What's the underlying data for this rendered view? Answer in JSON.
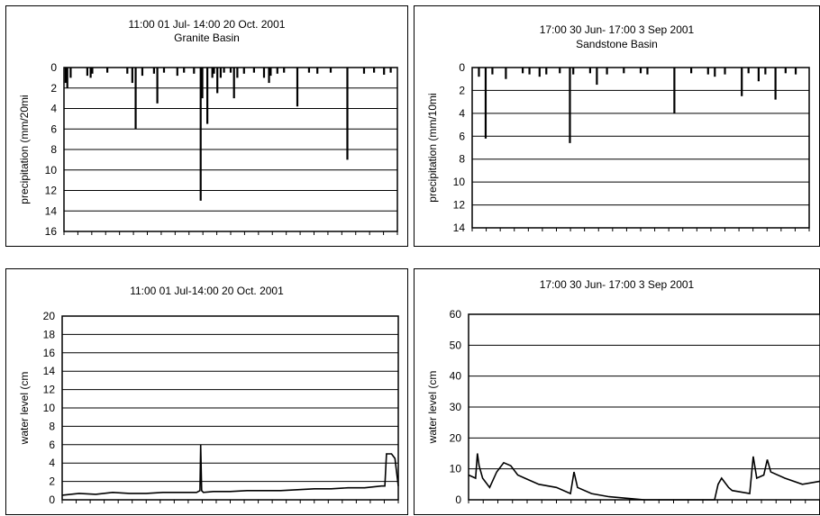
{
  "charts": [
    {
      "title": "11:00 01 Jul- 14:00 20 Oct. 2001",
      "subtitle": "Granite Basin",
      "ylabel": "precipitation (mm/20mi",
      "yticks": [
        "0",
        "2",
        "4",
        "6",
        "8",
        "10",
        "12",
        "14",
        "16"
      ]
    },
    {
      "title": "17:00 30 Jun- 17:00 3 Sep 2001",
      "subtitle": "Sandstone Basin",
      "ylabel": "precipitation (mm/10mi",
      "yticks": [
        "0",
        "2",
        "4",
        "6",
        "8",
        "10",
        "12",
        "14"
      ]
    },
    {
      "title": "11:00 01 Jul-14:00 20 Oct. 2001",
      "subtitle": "",
      "ylabel": "water level (cm",
      "yticks": [
        "0",
        "2",
        "4",
        "6",
        "8",
        "10",
        "12",
        "14",
        "16",
        "18",
        "20"
      ]
    },
    {
      "title": "17:00 30 Jun- 17:00 3 Sep 2001",
      "subtitle": "",
      "ylabel": "water level (cm",
      "yticks": [
        "0",
        "10",
        "20",
        "30",
        "40",
        "50",
        "60"
      ]
    }
  ],
  "chart_data": [
    {
      "type": "bar",
      "title": "11:00 01 Jul- 14:00 20 Oct. 2001",
      "subtitle": "Granite Basin",
      "ylabel": "precipitation (mm/20mi",
      "ylim": [
        0,
        16
      ],
      "y_inverted": true,
      "grid": true,
      "x_fraction_of_period": [
        0.005,
        0.01,
        0.02,
        0.07,
        0.08,
        0.085,
        0.13,
        0.19,
        0.205,
        0.215,
        0.235,
        0.27,
        0.28,
        0.3,
        0.34,
        0.36,
        0.39,
        0.41,
        0.415,
        0.43,
        0.445,
        0.45,
        0.46,
        0.47,
        0.48,
        0.5,
        0.51,
        0.52,
        0.54,
        0.57,
        0.6,
        0.615,
        0.62,
        0.64,
        0.66,
        0.7,
        0.735,
        0.76,
        0.8,
        0.85,
        0.9,
        0.93,
        0.96,
        0.98
      ],
      "values": [
        1.5,
        2.0,
        1.0,
        0.8,
        1.0,
        0.6,
        0.5,
        0.6,
        1.5,
        6.0,
        0.8,
        0.6,
        3.5,
        0.5,
        0.8,
        0.5,
        0.6,
        13.0,
        3.0,
        5.5,
        1.0,
        0.6,
        2.5,
        1.0,
        0.5,
        0.5,
        3.0,
        1.0,
        0.6,
        0.5,
        1.0,
        1.5,
        0.8,
        0.6,
        0.5,
        3.8,
        0.5,
        0.6,
        0.5,
        9.0,
        0.6,
        0.5,
        0.7,
        0.5
      ]
    },
    {
      "type": "bar",
      "title": "17:00 30 Jun- 17:00 3 Sep 2001",
      "subtitle": "Sandstone Basin",
      "ylabel": "precipitation (mm/10mi",
      "ylim": [
        0,
        14
      ],
      "y_inverted": true,
      "grid": true,
      "x_fraction_of_period": [
        0.02,
        0.04,
        0.06,
        0.1,
        0.15,
        0.17,
        0.2,
        0.22,
        0.26,
        0.29,
        0.3,
        0.35,
        0.37,
        0.4,
        0.45,
        0.5,
        0.52,
        0.6,
        0.65,
        0.7,
        0.72,
        0.75,
        0.8,
        0.82,
        0.85,
        0.87,
        0.9,
        0.93,
        0.96
      ],
      "values": [
        0.8,
        6.2,
        0.6,
        1.0,
        0.5,
        0.6,
        0.8,
        0.6,
        0.5,
        6.6,
        0.6,
        0.5,
        1.5,
        0.6,
        0.5,
        0.5,
        0.6,
        4.0,
        0.5,
        0.6,
        0.8,
        0.6,
        2.5,
        0.5,
        1.2,
        0.6,
        2.8,
        0.5,
        0.6
      ]
    },
    {
      "type": "line",
      "title": "11:00 01 Jul-14:00 20 Oct. 2001",
      "ylabel": "water level (cm",
      "ylim": [
        0,
        20
      ],
      "grid": true,
      "series": [
        {
          "x_fraction_of_period": [
            0,
            0.05,
            0.1,
            0.15,
            0.2,
            0.25,
            0.3,
            0.35,
            0.4,
            0.41,
            0.412,
            0.415,
            0.42,
            0.45,
            0.5,
            0.55,
            0.6,
            0.65,
            0.7,
            0.75,
            0.8,
            0.85,
            0.9,
            0.95,
            0.96,
            0.965,
            0.98,
            0.99,
            1.0
          ],
          "values": [
            0.5,
            0.7,
            0.6,
            0.8,
            0.7,
            0.7,
            0.8,
            0.8,
            0.8,
            1.0,
            6.0,
            1.0,
            0.8,
            0.9,
            0.9,
            1.0,
            1.0,
            1.0,
            1.1,
            1.2,
            1.2,
            1.3,
            1.3,
            1.5,
            1.5,
            5.0,
            5.0,
            4.5,
            1.5
          ]
        }
      ]
    },
    {
      "type": "line",
      "title": "17:00 30 Jun- 17:00 3 Sep 2001",
      "ylabel": "water level (cm",
      "ylim": [
        0,
        60
      ],
      "grid": true,
      "series": [
        {
          "x_fraction_of_period": [
            0,
            0.02,
            0.025,
            0.03,
            0.04,
            0.06,
            0.08,
            0.1,
            0.12,
            0.14,
            0.16,
            0.2,
            0.25,
            0.29,
            0.3,
            0.31,
            0.35,
            0.4,
            0.45,
            0.5,
            0.55,
            0.6,
            0.65,
            0.7,
            0.71,
            0.72,
            0.74,
            0.75,
            0.8,
            0.81,
            0.82,
            0.84,
            0.85,
            0.86,
            0.9,
            0.95,
            1.0
          ],
          "values": [
            8,
            7,
            15,
            11,
            7,
            4,
            9,
            12,
            11,
            8,
            7,
            5,
            4,
            2,
            9,
            4,
            2,
            1,
            0.5,
            0,
            0,
            0,
            0,
            0,
            5,
            7,
            4,
            3,
            2,
            14,
            7,
            8,
            13,
            9,
            7,
            5,
            6
          ]
        }
      ]
    }
  ]
}
